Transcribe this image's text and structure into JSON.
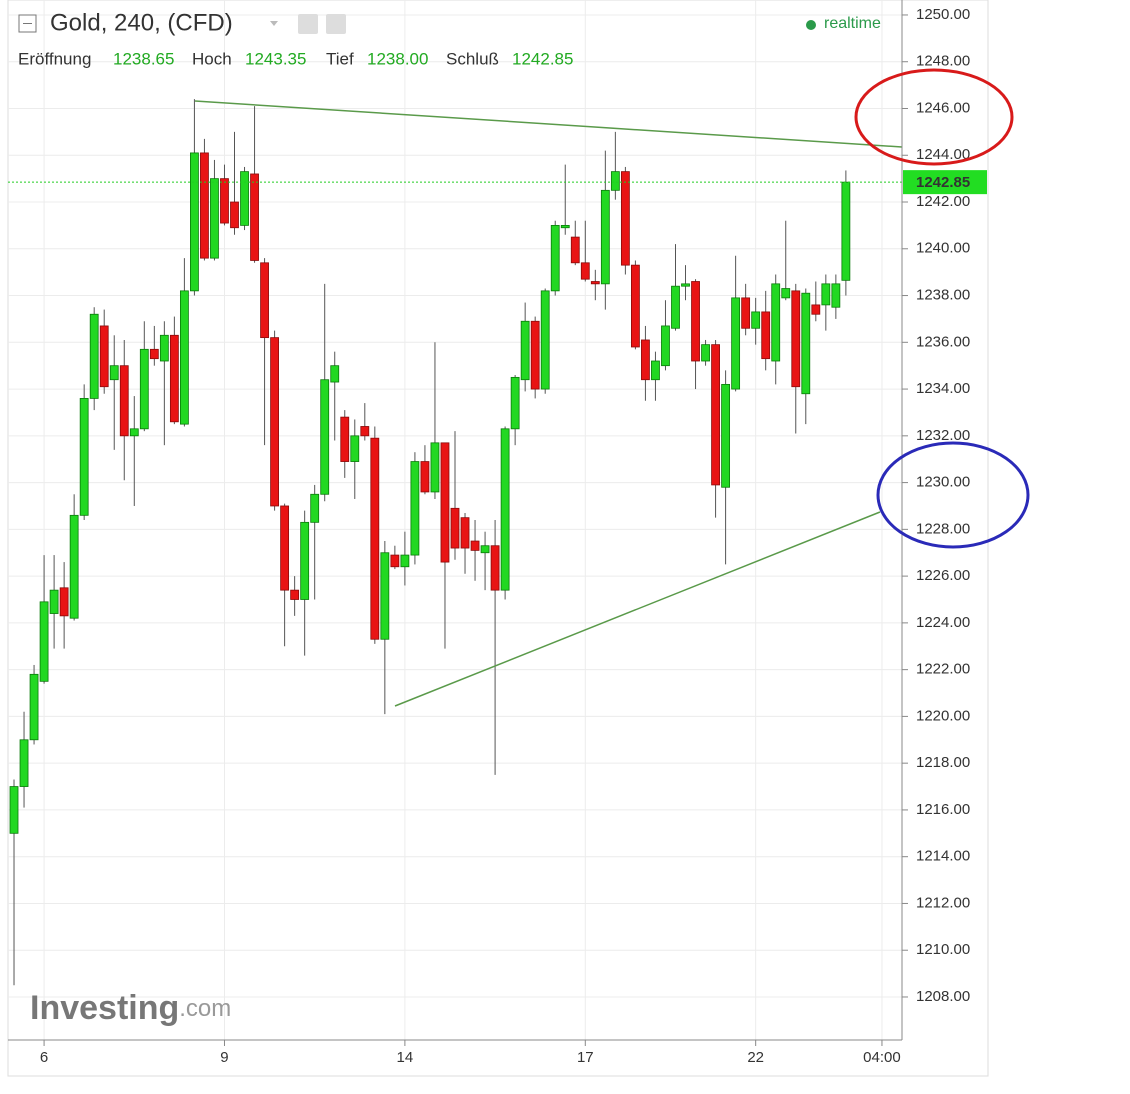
{
  "header": {
    "title": "Gold, 240, (CFD)",
    "status": "realtime",
    "ohlc_labels": [
      "Eröffnung",
      "Hoch",
      "Tief",
      "Schluß"
    ],
    "ohlc_values": [
      "1238.65",
      "1243.35",
      "1238.00",
      "1242.85"
    ],
    "watermark_brand": "Investing",
    "watermark_suffix": ".com"
  },
  "chart_data": {
    "type": "candlestick",
    "up_color": "#22d822",
    "down_color": "#e81414",
    "grid": true,
    "last_price": 1242.85,
    "x": [
      0,
      1,
      2,
      3,
      4,
      5,
      6,
      7,
      8,
      9,
      10,
      11,
      12,
      13,
      14,
      15,
      16,
      17,
      18,
      19,
      20,
      21,
      22,
      23,
      24,
      25,
      26,
      27,
      28,
      29,
      30,
      31,
      32,
      33,
      34,
      35,
      36,
      37,
      38,
      39,
      40,
      41,
      42,
      43,
      44,
      45,
      46,
      47,
      48,
      49,
      50,
      51,
      52,
      53,
      54,
      55,
      56,
      57,
      58,
      59,
      60,
      61,
      62,
      63,
      64,
      65,
      66,
      67,
      68,
      69,
      70,
      71,
      72,
      73,
      74,
      75,
      76,
      77,
      78,
      79,
      80,
      81,
      82,
      83
    ],
    "open": [
      1215.0,
      1217.0,
      1219.0,
      1221.5,
      1224.4,
      1225.5,
      1224.2,
      1228.6,
      1233.6,
      1236.7,
      1234.4,
      1235.0,
      1232.0,
      1232.3,
      1235.7,
      1235.2,
      1236.3,
      1232.5,
      1238.2,
      1244.1,
      1239.6,
      1243.0,
      1242.0,
      1241.0,
      1243.2,
      1239.4,
      1236.2,
      1229.0,
      1225.4,
      1225.0,
      1228.3,
      1229.5,
      1234.3,
      1232.8,
      1230.9,
      1232.4,
      1231.9,
      1223.3,
      1226.9,
      1226.4,
      1226.9,
      1230.9,
      1229.6,
      1231.7,
      1228.9,
      1228.5,
      1227.5,
      1227.0,
      1227.3,
      1225.4,
      1232.3,
      1234.4,
      1236.9,
      1234.0,
      1238.2,
      1240.9,
      1240.5,
      1239.4,
      1238.6,
      1238.5,
      1242.5,
      1243.3,
      1239.3,
      1236.1,
      1234.4,
      1235.0,
      1236.6,
      1238.4,
      1238.6,
      1235.2,
      1235.9,
      1229.8,
      1234.0,
      1237.9,
      1236.6,
      1237.3,
      1235.2,
      1237.9,
      1238.2,
      1233.8,
      1237.6,
      1237.6,
      1237.5,
      1238.65
    ],
    "high": [
      1217.3,
      1220.2,
      1222.2,
      1226.9,
      1226.9,
      1226.6,
      1229.5,
      1234.2,
      1237.5,
      1237.4,
      1236.3,
      1236.1,
      1233.7,
      1236.9,
      1236.7,
      1236.9,
      1237.1,
      1239.6,
      1246.4,
      1244.7,
      1243.8,
      1243.6,
      1245.0,
      1243.5,
      1246.1,
      1239.6,
      1236.5,
      1229.1,
      1226.0,
      1228.8,
      1229.9,
      1238.5,
      1235.6,
      1233.1,
      1232.7,
      1233.4,
      1232.4,
      1227.5,
      1227.3,
      1227.9,
      1231.3,
      1231.6,
      1236.0,
      1231.7,
      1232.2,
      1228.7,
      1228.4,
      1227.9,
      1228.4,
      1232.4,
      1234.6,
      1237.7,
      1237.1,
      1238.3,
      1241.2,
      1243.6,
      1241.2,
      1241.2,
      1239.1,
      1244.2,
      1245.0,
      1243.5,
      1239.5,
      1236.7,
      1235.6,
      1237.8,
      1240.2,
      1239.3,
      1238.7,
      1236.1,
      1236.1,
      1234.8,
      1239.7,
      1238.5,
      1237.9,
      1238.2,
      1238.9,
      1241.2,
      1238.5,
      1238.3,
      1238.6,
      1238.9,
      1238.9,
      1243.35
    ],
    "low": [
      1208.5,
      1216.1,
      1218.8,
      1221.4,
      1222.9,
      1222.9,
      1224.1,
      1228.4,
      1233.1,
      1233.8,
      1231.4,
      1230.1,
      1229.0,
      1232.2,
      1235.0,
      1231.6,
      1232.5,
      1232.4,
      1238.0,
      1239.5,
      1239.5,
      1241.0,
      1240.6,
      1240.8,
      1239.4,
      1231.6,
      1228.8,
      1223.0,
      1224.3,
      1222.6,
      1225.0,
      1229.2,
      1231.8,
      1230.2,
      1229.3,
      1231.8,
      1223.1,
      1220.1,
      1226.3,
      1225.6,
      1226.5,
      1229.5,
      1229.3,
      1222.9,
      1226.7,
      1226.1,
      1225.8,
      1225.4,
      1217.5,
      1225.0,
      1231.6,
      1233.9,
      1233.6,
      1233.8,
      1238.0,
      1240.6,
      1239.3,
      1238.6,
      1237.8,
      1237.4,
      1242.1,
      1238.9,
      1235.7,
      1233.5,
      1233.5,
      1234.8,
      1236.5,
      1237.8,
      1234.0,
      1235.0,
      1228.5,
      1226.5,
      1233.9,
      1236.3,
      1235.9,
      1234.8,
      1234.2,
      1237.8,
      1232.1,
      1232.5,
      1236.9,
      1236.5,
      1237.0,
      1238.0
    ],
    "close": [
      1217.0,
      1219.0,
      1221.8,
      1224.9,
      1225.4,
      1224.3,
      1228.6,
      1233.6,
      1237.2,
      1234.1,
      1235.0,
      1232.0,
      1232.3,
      1235.7,
      1235.3,
      1236.3,
      1232.6,
      1238.2,
      1244.1,
      1239.6,
      1243.0,
      1241.1,
      1240.9,
      1243.3,
      1239.5,
      1236.2,
      1229.0,
      1225.4,
      1225.0,
      1228.3,
      1229.5,
      1234.4,
      1235.0,
      1230.9,
      1232.0,
      1232.0,
      1223.3,
      1227.0,
      1226.4,
      1226.9,
      1230.9,
      1229.6,
      1231.7,
      1226.6,
      1227.2,
      1227.2,
      1227.1,
      1227.3,
      1225.4,
      1232.3,
      1234.5,
      1236.9,
      1234.0,
      1238.2,
      1241.0,
      1241.0,
      1239.4,
      1238.7,
      1238.5,
      1242.5,
      1243.3,
      1239.3,
      1235.8,
      1234.4,
      1235.2,
      1236.7,
      1238.4,
      1238.5,
      1235.2,
      1235.9,
      1229.9,
      1234.2,
      1237.9,
      1236.6,
      1237.3,
      1235.3,
      1238.5,
      1238.3,
      1234.1,
      1238.1,
      1237.2,
      1238.5,
      1238.5,
      1242.85
    ],
    "xlim": [
      -0.6,
      88.6
    ],
    "xticks": [
      {
        "value": 3,
        "label": "6"
      },
      {
        "value": 21,
        "label": "9"
      },
      {
        "value": 39,
        "label": "14"
      },
      {
        "value": 57,
        "label": "17"
      },
      {
        "value": 74,
        "label": "22"
      },
      {
        "value": 86.6,
        "label": "04:00"
      }
    ],
    "ylim": [
      1206.16,
      1250.64
    ],
    "yticks": [
      {
        "value": 1208,
        "label": "1208.00"
      },
      {
        "value": 1210,
        "label": "1210.00"
      },
      {
        "value": 1212,
        "label": "1212.00"
      },
      {
        "value": 1214,
        "label": "1214.00"
      },
      {
        "value": 1216,
        "label": "1216.00"
      },
      {
        "value": 1218,
        "label": "1218.00"
      },
      {
        "value": 1220,
        "label": "1220.00"
      },
      {
        "value": 1222,
        "label": "1222.00"
      },
      {
        "value": 1224,
        "label": "1224.00"
      },
      {
        "value": 1226,
        "label": "1226.00"
      },
      {
        "value": 1228,
        "label": "1228.00"
      },
      {
        "value": 1230,
        "label": "1230.00"
      },
      {
        "value": 1232,
        "label": "1232.00"
      },
      {
        "value": 1234,
        "label": "1234.00"
      },
      {
        "value": 1236,
        "label": "1236.00"
      },
      {
        "value": 1238,
        "label": "1238.00"
      },
      {
        "value": 1240,
        "label": "1240.00"
      },
      {
        "value": 1242,
        "label": "1242.00"
      },
      {
        "value": 1244,
        "label": "1244.00"
      },
      {
        "value": 1246,
        "label": "1246.00"
      },
      {
        "value": 1248,
        "label": "1248.00"
      },
      {
        "value": 1250,
        "label": "1250.00"
      }
    ]
  }
}
